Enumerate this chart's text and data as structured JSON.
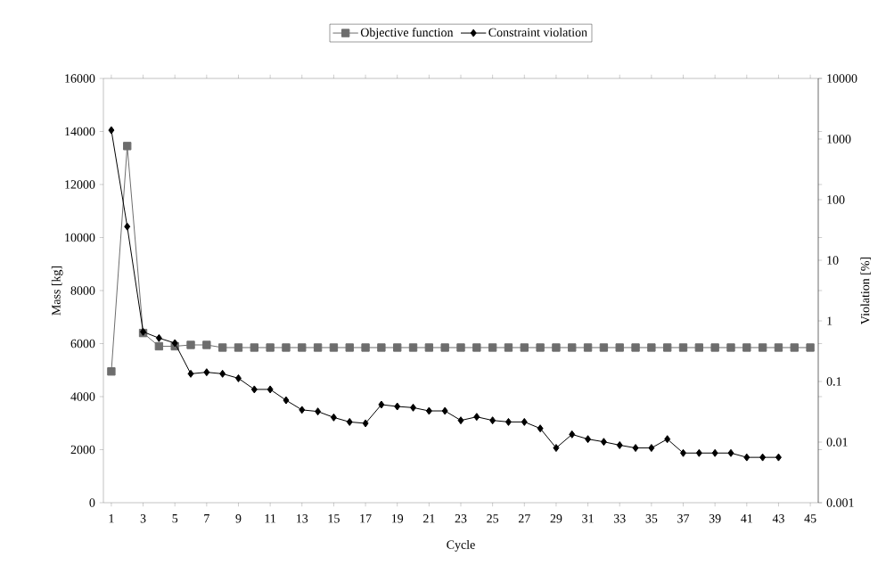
{
  "chart_data": {
    "type": "line",
    "xlabel": "Cycle",
    "ylabel": "Mass [kg]",
    "y2label": "Violation [%]",
    "legend": "top",
    "log": "y2",
    "x": [
      1,
      2,
      3,
      4,
      5,
      6,
      7,
      8,
      9,
      10,
      11,
      12,
      13,
      14,
      15,
      16,
      17,
      18,
      19,
      20,
      21,
      22,
      23,
      24,
      25,
      26,
      27,
      28,
      29,
      30,
      31,
      32,
      33,
      34,
      35,
      36,
      37,
      38,
      39,
      40,
      41,
      42,
      43,
      44,
      45
    ],
    "xlim": [
      0.5,
      45.5
    ],
    "xticks": [
      1,
      3,
      5,
      7,
      9,
      11,
      13,
      15,
      17,
      19,
      21,
      23,
      25,
      27,
      29,
      31,
      33,
      35,
      37,
      39,
      41,
      43,
      45
    ],
    "ylim": [
      0,
      16000
    ],
    "yticks": [
      0,
      2000,
      4000,
      6000,
      8000,
      10000,
      12000,
      14000,
      16000
    ],
    "y2lim": [
      0.001,
      10000
    ],
    "y2ticks": [
      0.001,
      0.01,
      0.1,
      1,
      10,
      100,
      1000,
      10000
    ],
    "series": [
      {
        "name": "Objective function",
        "color": "#6d6d6d",
        "marker": "square",
        "values": [
          4950,
          13450,
          6400,
          5900,
          5900,
          5950,
          5950,
          5850,
          5850,
          5850,
          5850,
          5850,
          5850,
          5850,
          5850,
          5850,
          5850,
          5850,
          5850,
          5850,
          5850,
          5850,
          5850,
          5850,
          5850,
          5850,
          5850,
          5850,
          5850,
          5850,
          5850,
          5850,
          5850,
          5850,
          5850,
          5850,
          5850,
          5850,
          5850,
          5850,
          5850,
          5850,
          5850,
          5850,
          5850
        ]
      },
      {
        "name": "Constraint violation",
        "color": "#000000",
        "marker": "diamond",
        "axis": "y2",
        "values": [
          1400,
          36,
          0.66,
          0.52,
          0.43,
          0.134,
          0.142,
          0.134,
          0.113,
          0.074,
          0.074,
          0.049,
          0.034,
          0.032,
          0.0255,
          0.0215,
          0.0204,
          0.0415,
          0.0387,
          0.037,
          0.0327,
          0.0327,
          0.0228,
          0.0261,
          0.0228,
          0.0215,
          0.0215,
          0.0168,
          0.008,
          0.0134,
          0.0112,
          0.0101,
          0.0089,
          0.008,
          0.008,
          0.0112,
          0.0066,
          0.0066,
          0.0066,
          0.0066,
          0.0056,
          0.0056,
          0.0056,
          null,
          null
        ]
      }
    ]
  }
}
